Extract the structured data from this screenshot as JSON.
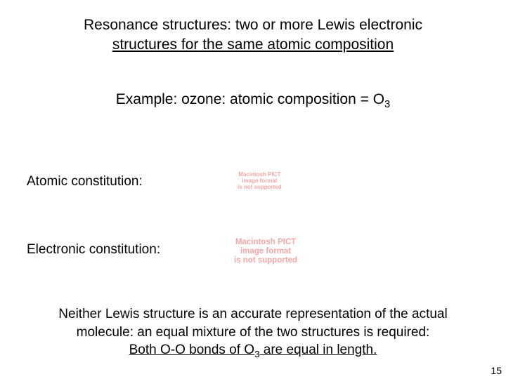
{
  "colors": {
    "background": "#ffffff",
    "text": "#000000",
    "placeholder": "#f7a6a6"
  },
  "typography": {
    "body_family": "Trebuchet MS",
    "title_fontsize_pt": 16,
    "body_fontsize_pt": 14,
    "placeholder_small_pt": 6,
    "placeholder_large_pt": 8.5,
    "pagenum_fontsize_pt": 10
  },
  "title": {
    "line1": "Resonance structures: two or more Lewis electronic",
    "line2_underlined": "structures for the same atomic composition"
  },
  "example": {
    "prefix": "Example: ozone: atomic composition = O",
    "subscript": "3"
  },
  "labels": {
    "atomic": "Atomic constitution:",
    "electronic": "Electronic constitution:"
  },
  "placeholders": {
    "small": "Macintosh PICT\nimage format\nis not supported",
    "large": "Macintosh PICT\nimage format\nis not supported"
  },
  "bottom": {
    "line1": "Neither Lewis structure is an accurate representation of the actual",
    "line2": "molecule: an equal mixture of the two structures is required:",
    "line3_prefix": "Both O-O bonds of O",
    "line3_sub": "3",
    "line3_suffix": " are equal in length."
  },
  "page_number": "15"
}
